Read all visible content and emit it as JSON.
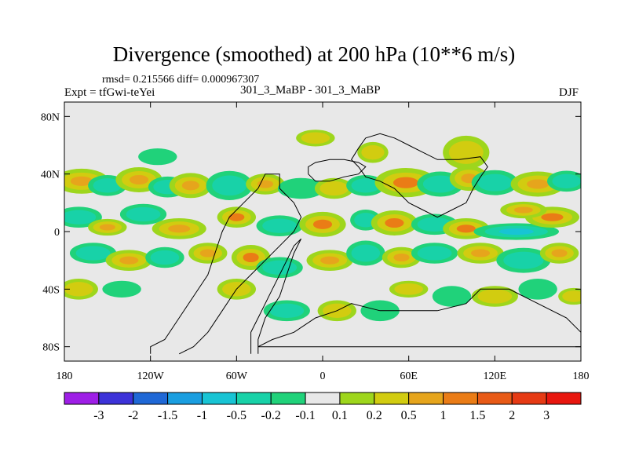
{
  "header": {
    "title": "Divergence (smoothed) at 200 hPa (10**6 m/s)",
    "stats": "rmsd= 0.215566 diff= 0.000967307",
    "experiment": "Expt = tfGwi-teYei",
    "comparison": "301_3_MaBP - 301_3_MaBP",
    "season": "DJF"
  },
  "chart_data": {
    "type": "heatmap",
    "title": "Divergence (smoothed) at 200 hPa (10**6 m/s)",
    "xlabel": "",
    "ylabel": "",
    "xlim": [
      -180,
      180
    ],
    "ylim": [
      -90,
      90
    ],
    "x_ticks": [
      {
        "value": -180,
        "label": "180"
      },
      {
        "value": -120,
        "label": "120W"
      },
      {
        "value": -60,
        "label": "60W"
      },
      {
        "value": 0,
        "label": "0"
      },
      {
        "value": 60,
        "label": "60E"
      },
      {
        "value": 120,
        "label": "120E"
      },
      {
        "value": 180,
        "label": "180"
      }
    ],
    "y_ticks": [
      {
        "value": 80,
        "label": "80N"
      },
      {
        "value": 40,
        "label": "40N"
      },
      {
        "value": 0,
        "label": "0"
      },
      {
        "value": -40,
        "label": "40S"
      },
      {
        "value": -80,
        "label": "80S"
      }
    ],
    "colorbar": {
      "labels": [
        "-3",
        "-2",
        "-1.5",
        "-1",
        "-0.5",
        "-0.2",
        "-0.1",
        "0.1",
        "0.2",
        "0.5",
        "1",
        "1.5",
        "2",
        "3"
      ],
      "colors": [
        "#9e1ee6",
        "#3c32d8",
        "#1f68d6",
        "#1a9ee0",
        "#18c4d4",
        "#18d2a8",
        "#20d27a",
        "#e8e8e8",
        "#9ed61c",
        "#d2cc10",
        "#e6a51c",
        "#ea7c16",
        "#e85a16",
        "#e63a14",
        "#e8160e"
      ]
    },
    "background_color": "#e8e8e8",
    "features": [
      {
        "lon": -168,
        "lat": 35,
        "rx": 14,
        "ry": 6,
        "value": 0.5
      },
      {
        "lon": -150,
        "lat": 32,
        "rx": 10,
        "ry": 5,
        "value": -0.5
      },
      {
        "lon": -128,
        "lat": 36,
        "rx": 12,
        "ry": 6,
        "value": 0.5
      },
      {
        "lon": -108,
        "lat": 31,
        "rx": 10,
        "ry": 5,
        "value": -0.5
      },
      {
        "lon": -92,
        "lat": 32,
        "rx": 11,
        "ry": 6,
        "value": 0.5
      },
      {
        "lon": -65,
        "lat": 32,
        "rx": 12,
        "ry": 7,
        "value": -0.5
      },
      {
        "lon": -40,
        "lat": 33,
        "rx": 10,
        "ry": 5,
        "value": 0.5
      },
      {
        "lon": -15,
        "lat": 30,
        "rx": 12,
        "ry": 5,
        "value": -0.2
      },
      {
        "lon": 8,
        "lat": 30,
        "rx": 10,
        "ry": 5,
        "value": 0.2
      },
      {
        "lon": 30,
        "lat": 32,
        "rx": 10,
        "ry": 5,
        "value": -0.5
      },
      {
        "lon": 58,
        "lat": 34,
        "rx": 16,
        "ry": 7,
        "value": 1.0
      },
      {
        "lon": 82,
        "lat": 33,
        "rx": 12,
        "ry": 6,
        "value": -0.5
      },
      {
        "lon": 102,
        "lat": 37,
        "rx": 10,
        "ry": 6,
        "value": 0.5
      },
      {
        "lon": 120,
        "lat": 34,
        "rx": 12,
        "ry": 6,
        "value": -0.5
      },
      {
        "lon": 150,
        "lat": 33,
        "rx": 14,
        "ry": 6,
        "value": 0.5
      },
      {
        "lon": 170,
        "lat": 35,
        "rx": 10,
        "ry": 5,
        "value": -0.5
      },
      {
        "lon": 100,
        "lat": 55,
        "rx": 12,
        "ry": 8,
        "value": 0.2
      },
      {
        "lon": 35,
        "lat": 55,
        "rx": 8,
        "ry": 5,
        "value": 0.2
      },
      {
        "lon": -5,
        "lat": 65,
        "rx": 10,
        "ry": 4,
        "value": 0.2
      },
      {
        "lon": -115,
        "lat": 52,
        "rx": 10,
        "ry": 4,
        "value": -0.2
      },
      {
        "lon": -170,
        "lat": 10,
        "rx": 12,
        "ry": 5,
        "value": -0.5
      },
      {
        "lon": -150,
        "lat": 3,
        "rx": 10,
        "ry": 4,
        "value": 0.5
      },
      {
        "lon": -125,
        "lat": 12,
        "rx": 12,
        "ry": 5,
        "value": -0.5
      },
      {
        "lon": -100,
        "lat": 2,
        "rx": 14,
        "ry": 5,
        "value": 0.5
      },
      {
        "lon": -60,
        "lat": 10,
        "rx": 10,
        "ry": 5,
        "value": 1.0
      },
      {
        "lon": -30,
        "lat": 4,
        "rx": 12,
        "ry": 5,
        "value": -0.5
      },
      {
        "lon": 0,
        "lat": 5,
        "rx": 12,
        "ry": 6,
        "value": 1.0
      },
      {
        "lon": 30,
        "lat": 8,
        "rx": 8,
        "ry": 5,
        "value": -0.5
      },
      {
        "lon": 50,
        "lat": 6,
        "rx": 12,
        "ry": 6,
        "value": 1.0
      },
      {
        "lon": 78,
        "lat": 5,
        "rx": 12,
        "ry": 5,
        "value": -0.5
      },
      {
        "lon": 100,
        "lat": 2,
        "rx": 12,
        "ry": 5,
        "value": 1.0
      },
      {
        "lon": 135,
        "lat": 0,
        "rx": 22,
        "ry": 4,
        "value": -1.0
      },
      {
        "lon": 160,
        "lat": 10,
        "rx": 14,
        "ry": 5,
        "value": 1.0
      },
      {
        "lon": 140,
        "lat": 15,
        "rx": 12,
        "ry": 4,
        "value": 0.5
      },
      {
        "lon": -160,
        "lat": -15,
        "rx": 12,
        "ry": 5,
        "value": -0.5
      },
      {
        "lon": -135,
        "lat": -20,
        "rx": 12,
        "ry": 5,
        "value": 0.5
      },
      {
        "lon": -110,
        "lat": -18,
        "rx": 10,
        "ry": 5,
        "value": -0.5
      },
      {
        "lon": -80,
        "lat": -15,
        "rx": 10,
        "ry": 5,
        "value": 0.5
      },
      {
        "lon": -50,
        "lat": -18,
        "rx": 10,
        "ry": 6,
        "value": 1.0
      },
      {
        "lon": -30,
        "lat": -25,
        "rx": 12,
        "ry": 5,
        "value": -0.5
      },
      {
        "lon": 5,
        "lat": -20,
        "rx": 12,
        "ry": 5,
        "value": 0.5
      },
      {
        "lon": 30,
        "lat": -15,
        "rx": 10,
        "ry": 6,
        "value": -0.5
      },
      {
        "lon": 55,
        "lat": -18,
        "rx": 10,
        "ry": 5,
        "value": 0.5
      },
      {
        "lon": 78,
        "lat": -15,
        "rx": 12,
        "ry": 5,
        "value": -0.5
      },
      {
        "lon": 110,
        "lat": -15,
        "rx": 12,
        "ry": 5,
        "value": 0.5
      },
      {
        "lon": 140,
        "lat": -20,
        "rx": 14,
        "ry": 6,
        "value": -0.5
      },
      {
        "lon": 165,
        "lat": -15,
        "rx": 10,
        "ry": 5,
        "value": 0.5
      },
      {
        "lon": -170,
        "lat": -40,
        "rx": 10,
        "ry": 5,
        "value": 0.2
      },
      {
        "lon": -140,
        "lat": -40,
        "rx": 10,
        "ry": 4,
        "value": -0.2
      },
      {
        "lon": -60,
        "lat": -40,
        "rx": 10,
        "ry": 5,
        "value": 0.2
      },
      {
        "lon": -25,
        "lat": -55,
        "rx": 12,
        "ry": 5,
        "value": -0.5
      },
      {
        "lon": 10,
        "lat": -55,
        "rx": 10,
        "ry": 5,
        "value": 0.2
      },
      {
        "lon": 40,
        "lat": -55,
        "rx": 10,
        "ry": 5,
        "value": -0.2
      },
      {
        "lon": 60,
        "lat": -40,
        "rx": 10,
        "ry": 4,
        "value": 0.2
      },
      {
        "lon": 90,
        "lat": -45,
        "rx": 10,
        "ry": 5,
        "value": -0.2
      },
      {
        "lon": 120,
        "lat": -45,
        "rx": 12,
        "ry": 5,
        "value": 0.2
      },
      {
        "lon": 150,
        "lat": -40,
        "rx": 10,
        "ry": 5,
        "value": -0.2
      },
      {
        "lon": 175,
        "lat": -45,
        "rx": 8,
        "ry": 4,
        "value": 0.2
      }
    ],
    "outlines": [
      [
        [
          -120,
          -85
        ],
        [
          -120,
          -80
        ],
        [
          -110,
          -75
        ],
        [
          -100,
          -60
        ],
        [
          -90,
          -45
        ],
        [
          -80,
          -30
        ],
        [
          -75,
          -15
        ],
        [
          -70,
          0
        ],
        [
          -65,
          10
        ],
        [
          -55,
          20
        ],
        [
          -45,
          30
        ],
        [
          -40,
          40
        ],
        [
          -30,
          40
        ],
        [
          -30,
          30
        ],
        [
          -20,
          20
        ],
        [
          -15,
          10
        ],
        [
          -20,
          0
        ],
        [
          -30,
          -10
        ],
        [
          -40,
          -20
        ],
        [
          -50,
          -30
        ],
        [
          -60,
          -40
        ],
        [
          -70,
          -55
        ],
        [
          -80,
          -70
        ],
        [
          -90,
          -80
        ],
        [
          -100,
          -85
        ]
      ],
      [
        [
          -50,
          -85
        ],
        [
          -50,
          -70
        ],
        [
          -45,
          -60
        ],
        [
          -40,
          -50
        ],
        [
          -35,
          -40
        ],
        [
          -30,
          -30
        ],
        [
          -25,
          -20
        ],
        [
          -20,
          -10
        ],
        [
          -15,
          -5
        ],
        [
          -20,
          -15
        ],
        [
          -25,
          -30
        ],
        [
          -30,
          -45
        ],
        [
          -40,
          -60
        ],
        [
          -45,
          -75
        ],
        [
          -45,
          -85
        ]
      ],
      [
        [
          -45,
          -80
        ],
        [
          180,
          -80
        ],
        [
          180,
          -70
        ],
        [
          170,
          -60
        ],
        [
          140,
          -45
        ],
        [
          130,
          -40
        ],
        [
          110,
          -40
        ],
        [
          100,
          -50
        ],
        [
          80,
          -55
        ],
        [
          60,
          -55
        ],
        [
          40,
          -55
        ],
        [
          20,
          -50
        ],
        [
          10,
          -55
        ],
        [
          -5,
          -60
        ],
        [
          -20,
          -70
        ],
        [
          -35,
          -75
        ],
        [
          -45,
          -80
        ]
      ],
      [
        [
          30,
          65
        ],
        [
          40,
          68
        ],
        [
          50,
          65
        ],
        [
          60,
          60
        ],
        [
          70,
          55
        ],
        [
          80,
          50
        ],
        [
          95,
          50
        ],
        [
          110,
          52
        ],
        [
          115,
          45
        ],
        [
          110,
          38
        ],
        [
          105,
          30
        ],
        [
          100,
          20
        ],
        [
          90,
          15
        ],
        [
          80,
          10
        ],
        [
          70,
          15
        ],
        [
          60,
          20
        ],
        [
          50,
          30
        ],
        [
          40,
          35
        ],
        [
          30,
          38
        ],
        [
          25,
          45
        ],
        [
          20,
          50
        ],
        [
          25,
          58
        ],
        [
          30,
          65
        ]
      ],
      [
        [
          -10,
          40
        ],
        [
          -5,
          35
        ],
        [
          5,
          35
        ],
        [
          15,
          38
        ],
        [
          25,
          40
        ],
        [
          30,
          45
        ],
        [
          25,
          48
        ],
        [
          15,
          50
        ],
        [
          5,
          50
        ],
        [
          -5,
          48
        ],
        [
          -10,
          45
        ],
        [
          -10,
          40
        ]
      ]
    ]
  }
}
